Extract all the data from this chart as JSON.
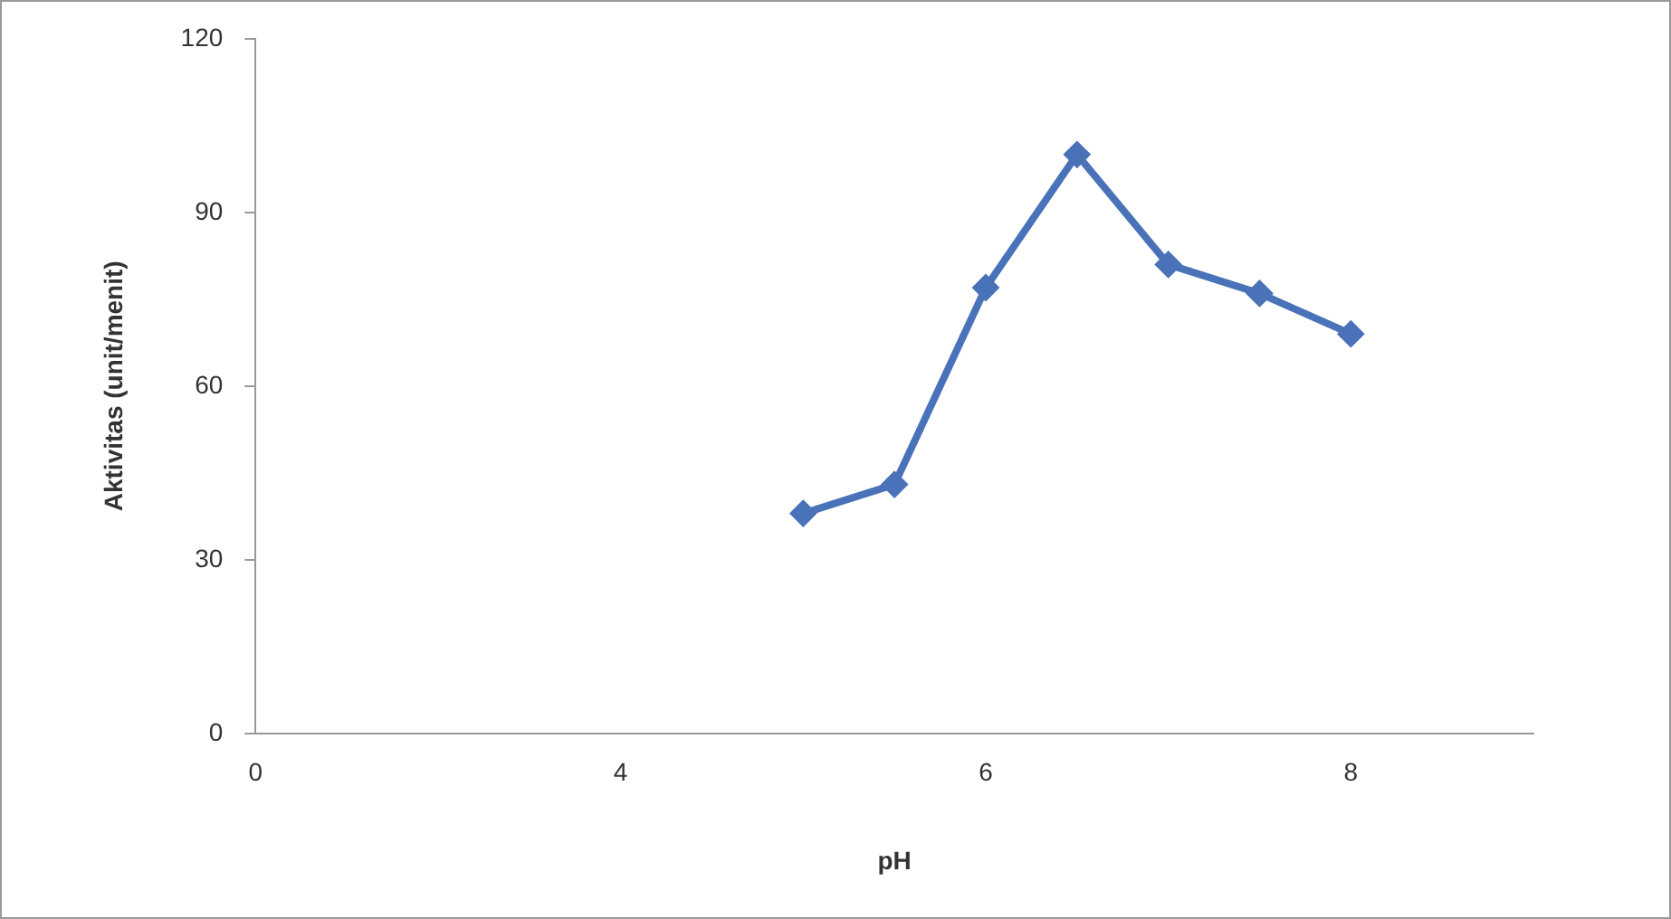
{
  "chart_data": {
    "type": "line",
    "xlabel": "pH",
    "ylabel": "Aktivitas (unit/menit)",
    "categories": [
      "0",
      null,
      null,
      null,
      "4",
      null,
      null,
      null,
      "6",
      null,
      null,
      null,
      "8",
      null,
      null
    ],
    "series": [
      {
        "color": "#4a72b8",
        "values": [
          null,
          null,
          null,
          null,
          null,
          null,
          38,
          43,
          77,
          100,
          81,
          76,
          69,
          null,
          null
        ]
      }
    ],
    "ylim": [
      0,
      120
    ],
    "yticks": [
      0,
      30,
      60,
      90,
      120
    ],
    "grid": false,
    "legend": false,
    "marker": "diamond",
    "line_style": "solid"
  }
}
